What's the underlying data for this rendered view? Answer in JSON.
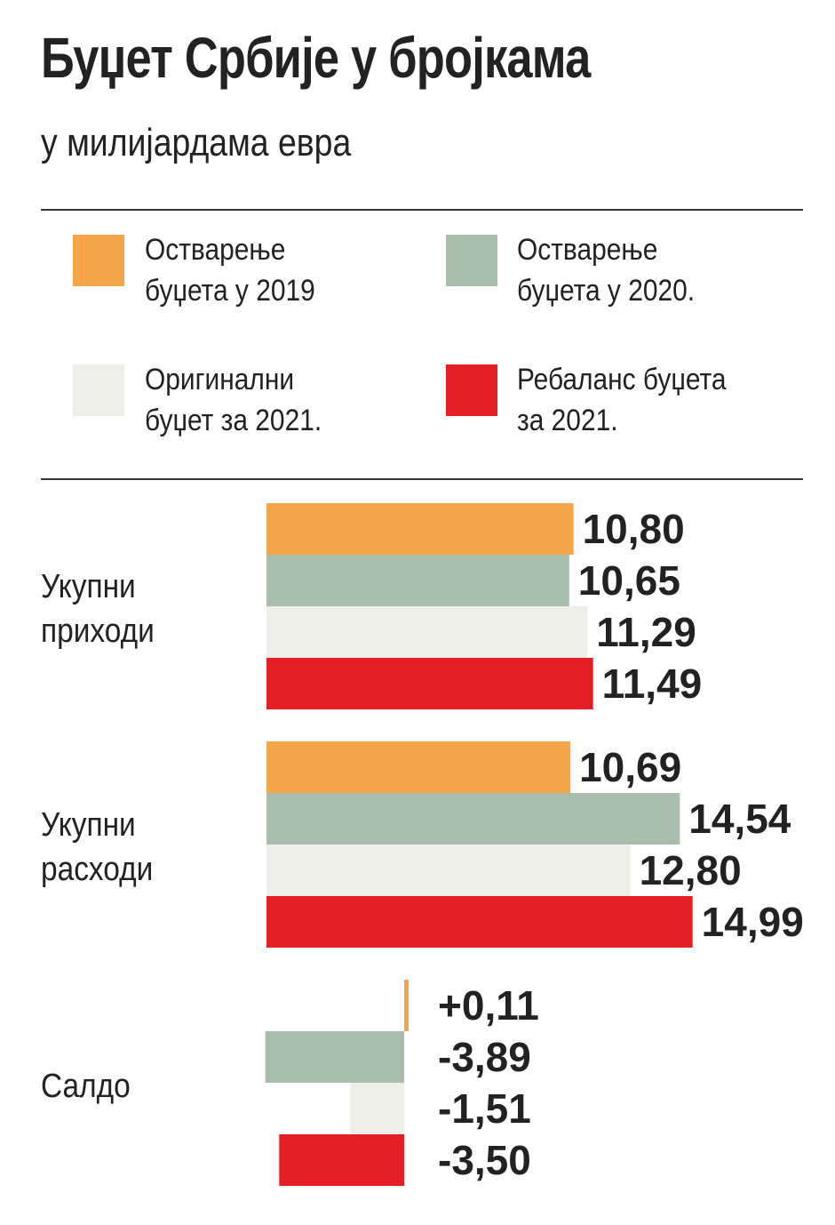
{
  "header": {
    "title": "Буџет Србије у бројкама",
    "subtitle": "у милијардама евра"
  },
  "legend": [
    {
      "line1": "Остварење",
      "line2": "буџета у 2019",
      "color": "#f5a54a"
    },
    {
      "line1": "Остварење",
      "line2": "буџета у 2020.",
      "color": "#a8bdab"
    },
    {
      "line1": "Оригинални",
      "line2": "буџет за 2021.",
      "color": "#efefea"
    },
    {
      "line1": "Ребаланс буџета",
      "line2": "за 2021.",
      "color": "#e31e24"
    }
  ],
  "chart_data": {
    "type": "bar",
    "orientation": "horizontal",
    "title": "Буџет Србије у бројкама",
    "subtitle": "у милијардама евра",
    "categories": [
      {
        "line1": "Укупни",
        "line2": "приходи"
      },
      {
        "line1": "Укупни",
        "line2": "расходи"
      },
      {
        "line1": "Салдо",
        "line2": ""
      }
    ],
    "series": [
      {
        "name": "Остварење буџета у 2019",
        "color": "#f5a54a",
        "values": [
          10.8,
          10.69,
          0.11
        ],
        "labels": [
          "10,80",
          "10,69",
          "+0,11"
        ]
      },
      {
        "name": "Остварење буџета у 2020.",
        "color": "#a8bdab",
        "values": [
          10.65,
          14.54,
          -3.89
        ],
        "labels": [
          "10,65",
          "14,54",
          "-3,89"
        ]
      },
      {
        "name": "Оригинални буџет за 2021.",
        "color": "#efefea",
        "values": [
          11.29,
          12.8,
          -1.51
        ],
        "labels": [
          "11,29",
          "12,80",
          "-1,51"
        ]
      },
      {
        "name": "Ребаланс буџета за 2021.",
        "color": "#e31e24",
        "values": [
          11.49,
          14.99,
          -3.5
        ],
        "labels": [
          "11,49",
          "14,99",
          "-3,50"
        ]
      }
    ],
    "grid": false,
    "legend_position": "top"
  }
}
